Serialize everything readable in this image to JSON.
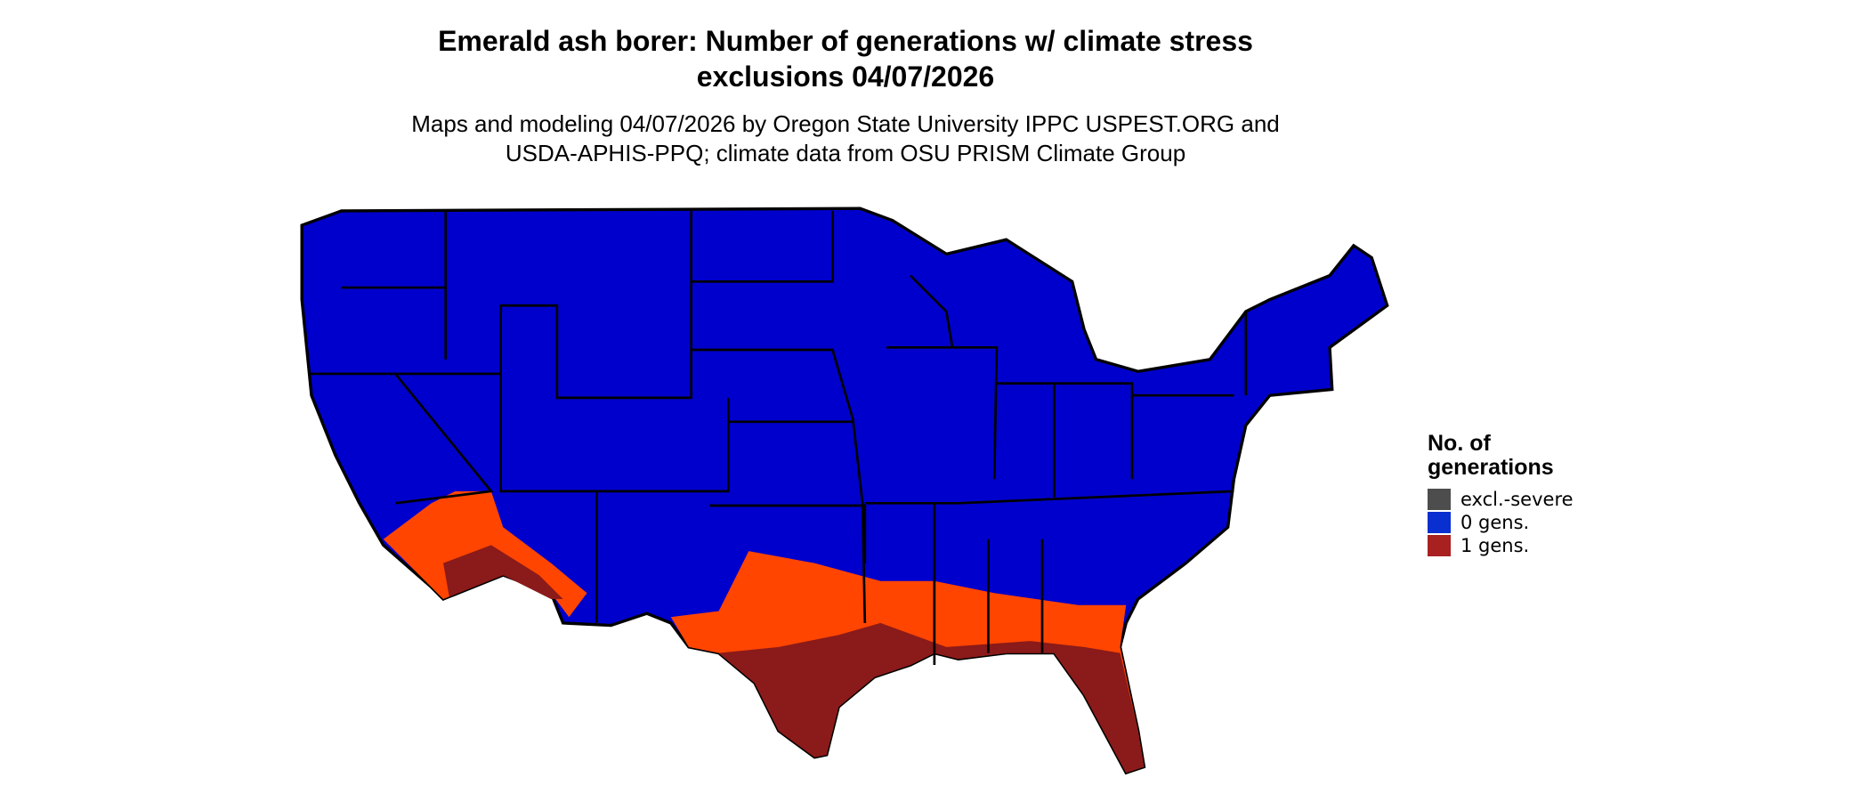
{
  "title_lines": [
    "Emerald ash borer: Number of generations w/ climate stress",
    "exclusions 04/07/2026"
  ],
  "subtitle_lines": [
    "Maps and modeling 04/07/2026 by Oregon State University IPPC USPEST.ORG and",
    "USDA-APHIS-PPQ; climate data from OSU PRISM Climate Group"
  ],
  "legend": {
    "title_lines": [
      "No. of",
      "generations"
    ],
    "items": [
      {
        "label": "excl.-severe",
        "color": "#4d4d4d"
      },
      {
        "label": "0 gens.",
        "color": "#0a2fd0"
      },
      {
        "label": "1 gens.",
        "color": "#a82020"
      }
    ]
  }
}
